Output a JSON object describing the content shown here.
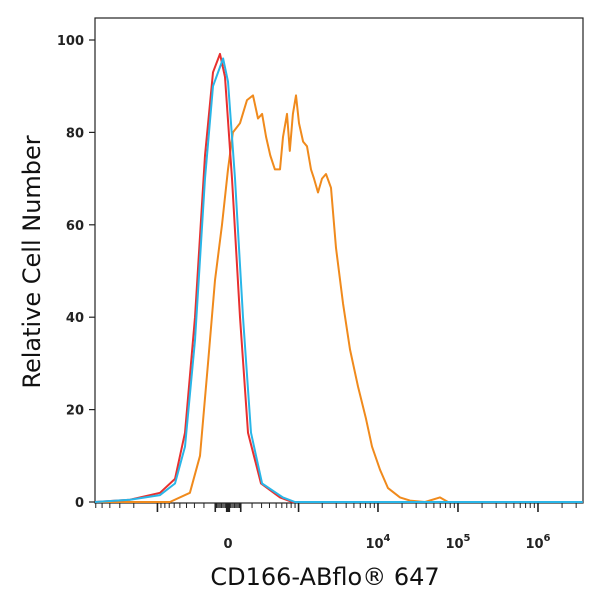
{
  "chart_data": {
    "type": "line",
    "title": "",
    "xlabel": "CD166-ABflo® 647",
    "ylabel": "Relative Cell Number",
    "x_scale": "biexponential",
    "xlim": [
      -6130,
      3630000
    ],
    "ylim": [
      0,
      100
    ],
    "grid": false,
    "legend": "none",
    "x_tick_labels": [
      {
        "value": 0,
        "base": "0",
        "exp": ""
      },
      {
        "value": 10000,
        "base": "10",
        "exp": "4"
      },
      {
        "value": 100000,
        "base": "10",
        "exp": "5"
      },
      {
        "value": 1000000,
        "base": "10",
        "exp": "6"
      }
    ],
    "y_ticks": [
      0,
      20,
      40,
      60,
      80,
      100
    ],
    "series": [
      {
        "color": "#e8302f",
        "x": [
          -6130,
          -2230,
          -927,
          -585,
          -422,
          -293,
          -190,
          -119,
          -62,
          -23,
          31,
          94,
          162,
          293,
          566,
          825,
          3630000
        ],
        "y": [
          0,
          0.5,
          2,
          5,
          15,
          40,
          75,
          93,
          97,
          92,
          70,
          40,
          15,
          4,
          1,
          0,
          0
        ]
      },
      {
        "color": "#29b6e8",
        "x": [
          -6130,
          -2230,
          -927,
          -585,
          -422,
          -293,
          -190,
          -119,
          -38,
          0,
          54,
          119,
          190,
          306,
          620,
          900,
          3630000
        ],
        "y": [
          0,
          0.5,
          1.5,
          4,
          12,
          35,
          70,
          90,
          96,
          91,
          70,
          40,
          15,
          4,
          1,
          0,
          0
        ]
      },
      {
        "color": "#f08a1c",
        "x": [
          -6130,
          -686,
          -355,
          -239,
          -162,
          -102,
          -46,
          0,
          38,
          94,
          153,
          209,
          260,
          306,
          355,
          411,
          481,
          566,
          622,
          705,
          769,
          844,
          927,
          1012,
          1143,
          1284,
          1444,
          1575,
          1770,
          1989,
          2232,
          2579,
          2982,
          3653,
          4467,
          5623,
          7076,
          8410,
          10600,
          13350,
          18850,
          25120,
          38700,
          59500,
          75000,
          3630000
        ],
        "y": [
          0,
          0,
          2,
          10,
          30,
          48,
          60,
          72,
          80,
          82,
          87,
          88,
          83,
          84,
          79,
          75,
          72,
          72,
          79,
          84,
          76,
          84,
          88,
          82,
          78,
          77,
          72,
          70,
          67,
          70,
          71,
          68,
          55,
          43,
          33,
          25,
          18,
          12,
          7,
          3,
          1,
          0.3,
          0,
          1,
          0,
          0
        ]
      }
    ]
  }
}
